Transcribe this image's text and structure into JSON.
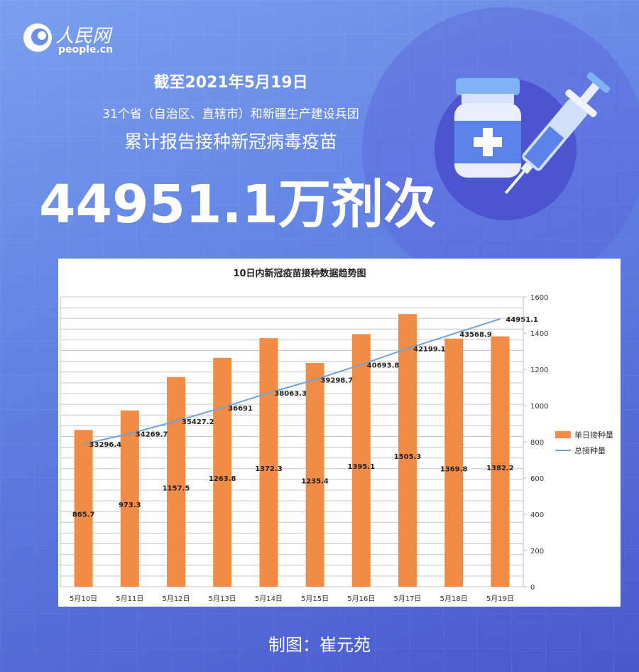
{
  "logo": {
    "cn": "人民网",
    "en": "people.cn"
  },
  "header": {
    "date": "截至2021年5月19日",
    "subtitle": "31个省（自治区、直辖市）和新疆生产建设兵团",
    "subtitle2": "累计报告接种新冠病毒疫苗",
    "total": "44951.1万剂次"
  },
  "colors": {
    "bar": "#f08c46",
    "line": "#6fa3d8",
    "background": "#5f7fe2"
  },
  "icons": [
    "vaccine-vial-icon",
    "syringe-icon"
  ],
  "chart_data": {
    "type": "bar+line",
    "title": "10日内新冠疫苗接种数据趋势图",
    "categories": [
      "5月10日",
      "5月11日",
      "5月12日",
      "5月13日",
      "5月14日",
      "5月15日",
      "5月16日",
      "5月17日",
      "5月18日",
      "5月19日"
    ],
    "series": [
      {
        "name": "单日接种量",
        "type": "bar",
        "axis": "right",
        "values": [
          865.7,
          973.3,
          1157.5,
          1263.8,
          1372.3,
          1235.4,
          1395.1,
          1505.3,
          1369.8,
          1382.2
        ],
        "labels": [
          "865.7",
          "973.3",
          "1157.5",
          "1263.8",
          "1372.3",
          "1235.4",
          "1395.1",
          "1505.3",
          "1369.8",
          "1382.2"
        ]
      },
      {
        "name": "总接种量",
        "type": "line",
        "axis": "left",
        "values": [
          33296.4,
          34269.7,
          35427.2,
          36691,
          38063.3,
          39298.7,
          40693.8,
          42199.1,
          43568.9,
          44951.1
        ],
        "labels": [
          "33296.4",
          "34269.7",
          "35427.2",
          "36691",
          "38063.3",
          "39298.7",
          "40693.8",
          "42199.1",
          "43568.9",
          "44951.1"
        ]
      }
    ],
    "left_axis": {
      "range": [
        20000,
        47000
      ],
      "step": 1000
    },
    "right_axis": {
      "range": [
        0,
        1600
      ],
      "step": 200
    },
    "grid": true,
    "legend": "right"
  },
  "footer": "制图：崔元苑"
}
